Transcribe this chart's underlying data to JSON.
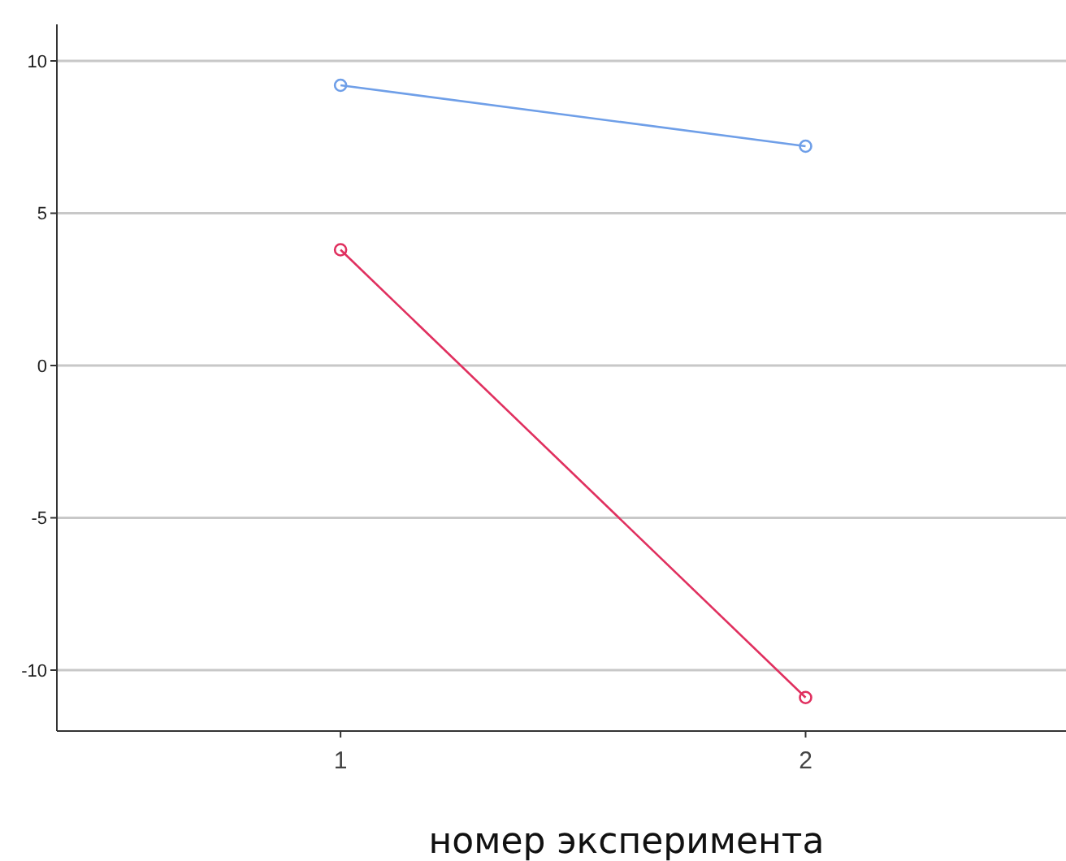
{
  "chart_data": {
    "type": "line",
    "xlabel": "номер эксперимента",
    "x": [
      1,
      2
    ],
    "xlim": [
      0.39,
      2.56
    ],
    "xticks": [
      1,
      2
    ],
    "ylim": [
      -12,
      11.2
    ],
    "yticks": [
      -10,
      -5,
      0,
      5,
      10
    ],
    "grid": "y",
    "marker": "circle",
    "line_style": "solid",
    "series": [
      {
        "color": "#6f9fe8",
        "values": [
          9.2,
          7.2
        ]
      },
      {
        "color": "#e0305f",
        "values": [
          3.8,
          -10.9
        ]
      }
    ]
  }
}
